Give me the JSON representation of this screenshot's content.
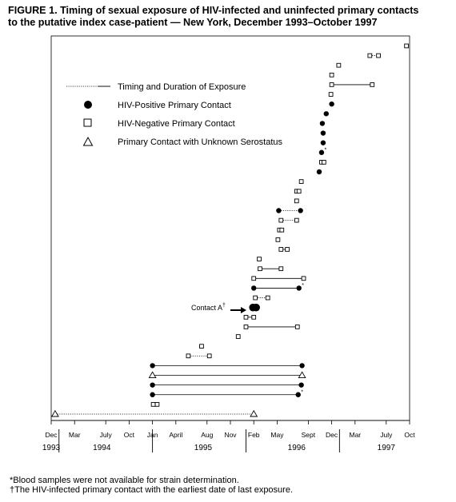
{
  "title": {
    "line1": "FIGURE 1. Timing of sexual exposure of HIV-infected and uninfected primary contacts",
    "line2": "to the putative index case-patient — New York, December 1993–October 1997"
  },
  "legend": {
    "exposure": "Timing and Duration of Exposure",
    "positive": "HIV-Positive Primary Contact",
    "negative": "HIV-Negative Primary Contact",
    "unknown": "Primary Contact with Unknown Serostatus"
  },
  "footnotes": {
    "star": "*Blood samples were not available for strain determination.",
    "dagger": "†The HIV-infected primary contact with the earliest date of last exposure."
  },
  "chart_data": {
    "type": "scatter",
    "title": "FIGURE 1. Timing of sexual exposure of HIV-infected and uninfected primary contacts to the putative index case-patient — New York, December 1993–October 1997",
    "xlabel": "",
    "ylabel": "",
    "x_unit": "months since December 1993",
    "xlim": [
      0,
      46
    ],
    "x_ticks": [
      {
        "x": 0,
        "label": "Dec"
      },
      {
        "x": 3,
        "label": "Mar"
      },
      {
        "x": 7,
        "label": "July"
      },
      {
        "x": 10,
        "label": "Oct"
      },
      {
        "x": 13,
        "label": "Jan"
      },
      {
        "x": 16,
        "label": "April"
      },
      {
        "x": 20,
        "label": "Aug"
      },
      {
        "x": 23,
        "label": "Nov"
      },
      {
        "x": 26,
        "label": "Feb"
      },
      {
        "x": 29,
        "label": "May"
      },
      {
        "x": 33,
        "label": "Sept"
      },
      {
        "x": 36,
        "label": "Dec"
      },
      {
        "x": 39,
        "label": "Mar"
      },
      {
        "x": 43,
        "label": "July"
      },
      {
        "x": 46,
        "label": "Oct"
      }
    ],
    "year_labels": [
      {
        "x": 0,
        "label": "1993"
      },
      {
        "x": 6.5,
        "label": "1994"
      },
      {
        "x": 19.5,
        "label": "1995"
      },
      {
        "x": 31.5,
        "label": "1996"
      },
      {
        "x": 43,
        "label": "1997"
      }
    ],
    "year_dividers": [
      1,
      13,
      25,
      37
    ],
    "annotation": {
      "text": "Contact A",
      "sup": "†",
      "row": 10
    },
    "contacts": [
      {
        "row": 0,
        "start": 0.5,
        "end": 26,
        "type": "unknown",
        "dash": true
      },
      {
        "row": 1,
        "start": 13.1,
        "end": 13.6,
        "type": "negative"
      },
      {
        "row": 2,
        "start": 13.0,
        "end": 31.7,
        "type": "positive",
        "mark": "*"
      },
      {
        "row": 3,
        "start": 13.0,
        "end": 32.1,
        "type": "positive"
      },
      {
        "row": 4,
        "start": 13.0,
        "end": 32.2,
        "type": "unknown"
      },
      {
        "row": 5,
        "start": 13.0,
        "end": 32.2,
        "type": "positive"
      },
      {
        "row": 6,
        "start": 17.6,
        "end": 20.3,
        "type": "negative",
        "dash": true
      },
      {
        "row": 7,
        "start": 19.3,
        "type": "negative"
      },
      {
        "row": 8,
        "start": 24.0,
        "type": "negative"
      },
      {
        "row": 9,
        "start": 25.0,
        "end": 31.6,
        "type": "negative"
      },
      {
        "row": 10,
        "start": 25.0,
        "end": 26.0,
        "type": "negative"
      },
      {
        "row": 11,
        "start": 25.9,
        "end": 26.3,
        "type": "positive",
        "big": true
      },
      {
        "row": 12,
        "start": 26.2,
        "end": 27.8,
        "type": "negative",
        "dash": true
      },
      {
        "row": 13,
        "start": 26.0,
        "end": 31.8,
        "type": "positive",
        "mark": "*"
      },
      {
        "row": 14,
        "start": 26.0,
        "end": 32.4,
        "type": "negative"
      },
      {
        "row": 15,
        "start": 26.8,
        "end": 29.5,
        "type": "negative"
      },
      {
        "row": 16,
        "start": 26.7,
        "type": "negative"
      },
      {
        "row": 17,
        "start": 29.5,
        "end": 30.3,
        "type": "negative"
      },
      {
        "row": 18,
        "start": 29.1,
        "type": "negative"
      },
      {
        "row": 19,
        "start": 29.3,
        "end": 29.6,
        "type": "negative"
      },
      {
        "row": 20,
        "start": 29.5,
        "end": 31.5,
        "type": "negative",
        "dash": true
      },
      {
        "row": 21,
        "start": 29.2,
        "end": 32.0,
        "type": "positive",
        "dash": true
      },
      {
        "row": 22,
        "start": 31.5,
        "type": "negative"
      },
      {
        "row": 23,
        "start": 31.5,
        "end": 31.8,
        "type": "negative"
      },
      {
        "row": 24,
        "start": 32.1,
        "type": "negative"
      },
      {
        "row": 25,
        "start": 34.4,
        "type": "positive"
      },
      {
        "row": 26,
        "start": 34.7,
        "end": 35.0,
        "type": "negative"
      },
      {
        "row": 27,
        "start": 34.7,
        "type": "positive",
        "mark": "*"
      },
      {
        "row": 28,
        "start": 34.9,
        "type": "positive"
      },
      {
        "row": 29,
        "start": 34.9,
        "type": "positive"
      },
      {
        "row": 30,
        "start": 34.8,
        "type": "positive"
      },
      {
        "row": 31,
        "start": 35.3,
        "type": "positive"
      },
      {
        "row": 32,
        "start": 36.0,
        "type": "positive"
      },
      {
        "row": 33,
        "start": 35.9,
        "type": "negative"
      },
      {
        "row": 34,
        "start": 36.0,
        "end": 41.2,
        "type": "negative"
      },
      {
        "row": 35,
        "start": 36.0,
        "type": "negative"
      },
      {
        "row": 36,
        "start": 36.9,
        "type": "negative"
      },
      {
        "row": 37,
        "start": 40.9,
        "end": 42.0,
        "type": "negative",
        "dash": true
      },
      {
        "row": 38,
        "start": 45.6,
        "type": "negative"
      }
    ]
  }
}
